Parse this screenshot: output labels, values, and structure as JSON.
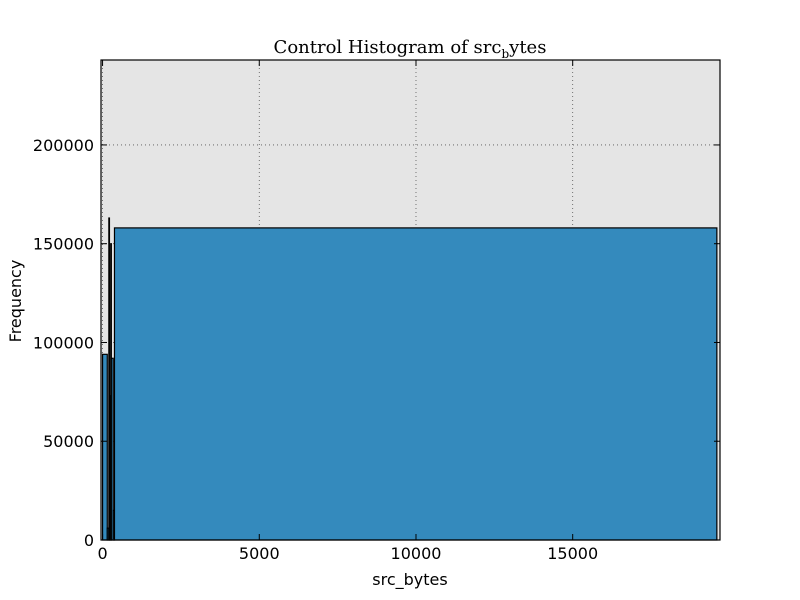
{
  "chart_data": {
    "type": "bar",
    "title": "Control Histogram of src",
    "title_subscript": "b",
    "title_suffix": "ytes",
    "xlabel": "src_bytes",
    "ylabel": "Frequency",
    "xlim": [
      -50,
      19700
    ],
    "ylim": [
      0,
      243000
    ],
    "xticks": [
      0,
      5000,
      10000,
      15000
    ],
    "xtick_labels": [
      "0",
      "5000",
      "10000",
      "15000"
    ],
    "yticks": [
      0,
      50000,
      100000,
      150000,
      200000
    ],
    "ytick_labels": [
      "0",
      "50000",
      "100000",
      "150000",
      "200000"
    ],
    "grid": true,
    "bins": [
      {
        "x0": 0,
        "x1": 150,
        "value": 94000
      },
      {
        "x0": 150,
        "x1": 200,
        "value": 6000
      },
      {
        "x0": 200,
        "x1": 220,
        "value": 163000
      },
      {
        "x0": 220,
        "x1": 260,
        "value": 73000
      },
      {
        "x0": 260,
        "x1": 280,
        "value": 150000
      },
      {
        "x0": 280,
        "x1": 340,
        "value": 92000
      },
      {
        "x0": 340,
        "x1": 380,
        "value": 15000
      },
      {
        "x0": 380,
        "x1": 19600,
        "value": 158000
      }
    ],
    "colors": {
      "bar": "#348abd",
      "plot_background": "#e5e5e5",
      "edge": "#000000"
    }
  }
}
